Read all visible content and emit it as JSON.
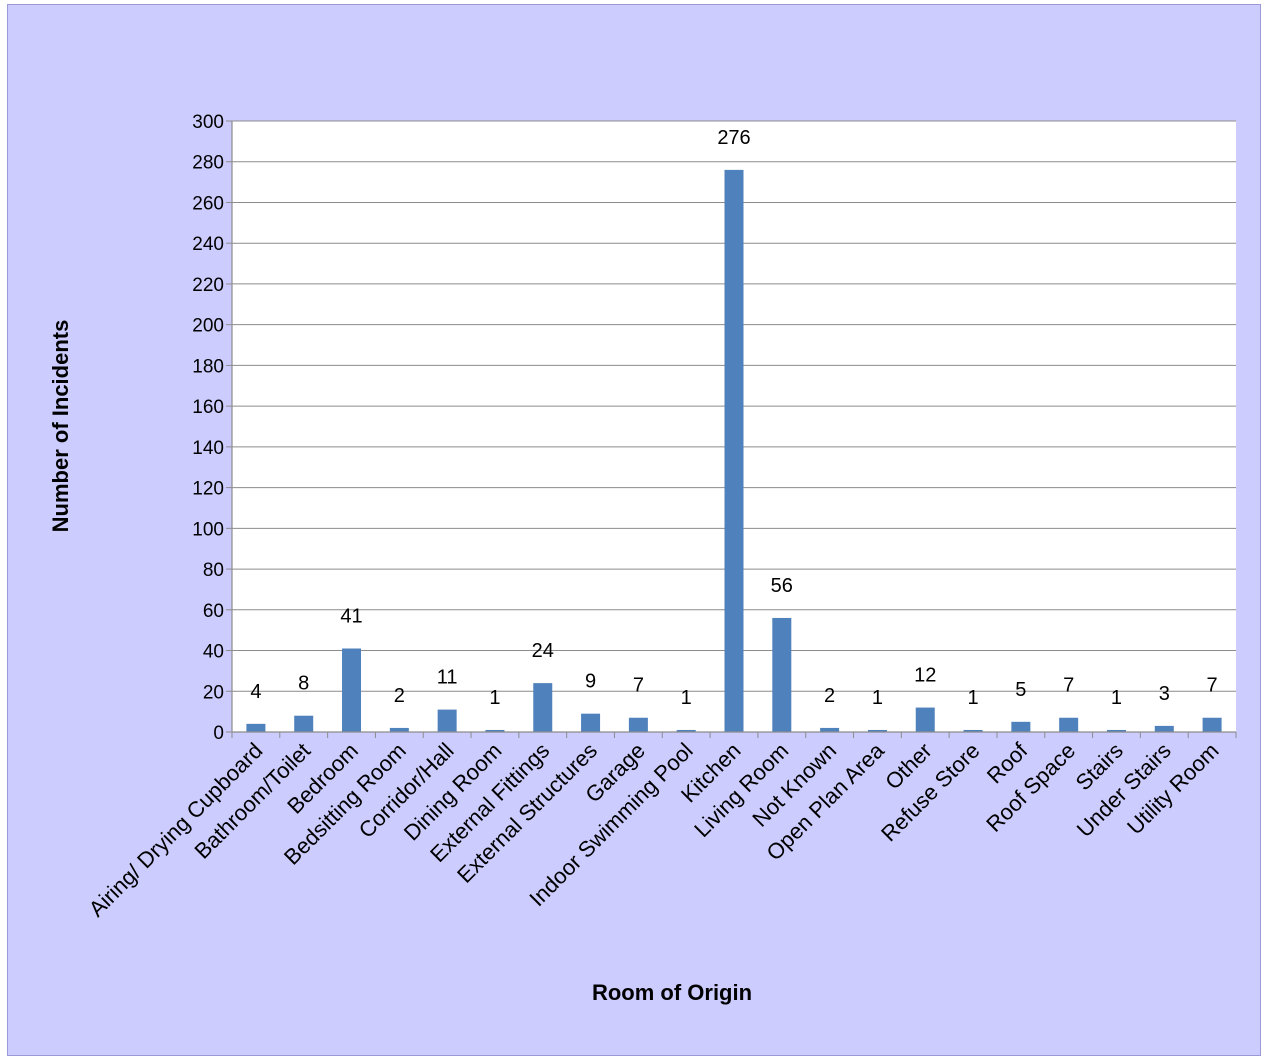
{
  "chart_data": {
    "type": "bar",
    "title": "",
    "xlabel": "Room of Origin",
    "ylabel": "Number of Incidents",
    "ylim": [
      0,
      300
    ],
    "ytick_step": 20,
    "grid": true,
    "legend": "none",
    "bar_color": "#4f81bd",
    "categories": [
      "Airing/ Drying Cupboard",
      "Bathroom/Toilet",
      "Bedroom",
      "Bedsitting Room",
      "Corridor/Hall",
      "Dining Room",
      "External Fittings",
      "External Structures",
      "Garage",
      "Indoor Swimming Pool",
      "Kitchen",
      "Living Room",
      "Not Known",
      "Open Plan Area",
      "Other",
      "Refuse Store",
      "Roof",
      "Roof Space",
      "Stairs",
      "Under Stairs",
      "Utility Room"
    ],
    "values": [
      4,
      8,
      41,
      2,
      11,
      1,
      24,
      9,
      7,
      1,
      276,
      56,
      2,
      1,
      12,
      1,
      5,
      7,
      1,
      3,
      7
    ]
  }
}
